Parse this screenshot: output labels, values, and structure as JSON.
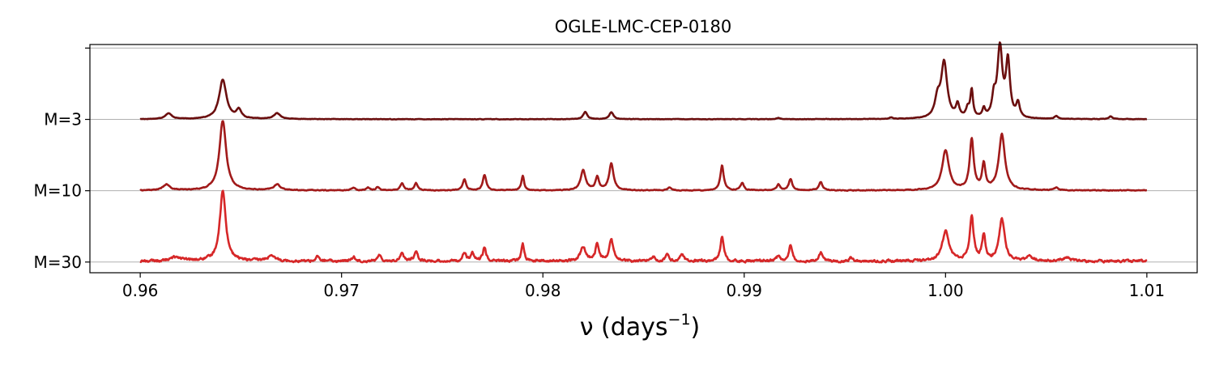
{
  "chart_data": {
    "type": "line",
    "title": "OGLE-LMC-CEP-0180",
    "xlabel": {
      "base": "ν (days",
      "sup": "−1",
      "close": ")"
    },
    "xlim": [
      0.9575,
      1.0125
    ],
    "x_ticks": [
      {
        "value": 0.96,
        "label": "0.96"
      },
      {
        "value": 0.97,
        "label": "0.97"
      },
      {
        "value": 0.98,
        "label": "0.98"
      },
      {
        "value": 0.99,
        "label": "0.99"
      },
      {
        "value": 1.0,
        "label": "1.00"
      },
      {
        "value": 1.01,
        "label": "1.01"
      }
    ],
    "y_ticks": [
      {
        "value": 0,
        "label": "M=30"
      },
      {
        "value": 1,
        "label": "M=10"
      },
      {
        "value": 2,
        "label": "M=3"
      },
      {
        "value": 3,
        "label": ""
      }
    ],
    "ylim": [
      -0.15,
      3.05
    ],
    "grid": "horizontal",
    "x_range": [
      0.96,
      1.01
    ],
    "series": [
      {
        "color": "#6b0f0f",
        "baseline": 2,
        "noise": 0.006,
        "peaks": [
          [
            0.9614,
            0.08,
            0.0002
          ],
          [
            0.9641,
            0.55,
            0.00022
          ],
          [
            0.9649,
            0.12,
            0.00015
          ],
          [
            0.9668,
            0.08,
            0.0002
          ],
          [
            0.9821,
            0.1,
            0.00012
          ],
          [
            0.9834,
            0.1,
            0.00012
          ],
          [
            0.9917,
            0.02,
            0.0001
          ],
          [
            0.9973,
            0.02,
            0.0001
          ],
          [
            0.9996,
            0.25,
            0.00015
          ],
          [
            0.99993,
            0.78,
            0.00018
          ],
          [
            1.0006,
            0.18,
            0.0001
          ],
          [
            1.0011,
            0.12,
            0.0001
          ],
          [
            1.0013,
            0.38,
            8e-05
          ],
          [
            1.0019,
            0.12,
            8e-05
          ],
          [
            1.0024,
            0.25,
            0.0001
          ],
          [
            1.0027,
            0.98,
            0.00015
          ],
          [
            1.0031,
            0.78,
            0.00012
          ],
          [
            1.0036,
            0.2,
            0.0001
          ],
          [
            1.0055,
            0.04,
            0.0001
          ],
          [
            1.0082,
            0.04,
            0.0001
          ]
        ]
      },
      {
        "color": "#a11a1a",
        "baseline": 1,
        "noise": 0.01,
        "peaks": [
          [
            0.9613,
            0.08,
            0.0002
          ],
          [
            0.9641,
            0.98,
            0.0002
          ],
          [
            0.9668,
            0.08,
            0.0002
          ],
          [
            0.9706,
            0.04,
            0.0001
          ],
          [
            0.9713,
            0.04,
            0.0001
          ],
          [
            0.9718,
            0.05,
            0.0001
          ],
          [
            0.973,
            0.1,
            0.0001
          ],
          [
            0.9737,
            0.1,
            0.0001
          ],
          [
            0.9761,
            0.15,
            0.0001
          ],
          [
            0.9771,
            0.22,
            0.0001
          ],
          [
            0.979,
            0.2,
            8e-05
          ],
          [
            0.982,
            0.28,
            0.00015
          ],
          [
            0.9827,
            0.18,
            0.0001
          ],
          [
            0.9834,
            0.38,
            0.00013
          ],
          [
            0.9863,
            0.04,
            0.0001
          ],
          [
            0.9889,
            0.35,
            0.0001
          ],
          [
            0.9899,
            0.1,
            0.0001
          ],
          [
            0.9917,
            0.08,
            0.0001
          ],
          [
            0.9923,
            0.16,
            0.0001
          ],
          [
            0.9938,
            0.12,
            0.0001
          ],
          [
            1.0,
            0.56,
            0.0002
          ],
          [
            1.0013,
            0.7,
            0.00012
          ],
          [
            1.0019,
            0.35,
            0.0001
          ],
          [
            1.0028,
            0.78,
            0.00018
          ],
          [
            1.0055,
            0.04,
            0.0001
          ]
        ]
      },
      {
        "color": "#d62728",
        "baseline": 0,
        "noise": 0.03,
        "peaks": [
          [
            0.9641,
            0.98,
            0.00018
          ],
          [
            0.9618,
            0.06,
            0.0003
          ],
          [
            0.9665,
            0.06,
            0.0003
          ],
          [
            0.9688,
            0.06,
            0.0001
          ],
          [
            0.9706,
            0.06,
            0.0001
          ],
          [
            0.9719,
            0.08,
            0.0001
          ],
          [
            0.973,
            0.12,
            0.0001
          ],
          [
            0.9737,
            0.15,
            0.0001
          ],
          [
            0.9761,
            0.12,
            0.0001
          ],
          [
            0.9765,
            0.1,
            0.0001
          ],
          [
            0.9771,
            0.18,
            0.0001
          ],
          [
            0.979,
            0.25,
            8e-05
          ],
          [
            0.982,
            0.2,
            0.00015
          ],
          [
            0.9827,
            0.25,
            0.0001
          ],
          [
            0.9834,
            0.3,
            0.00012
          ],
          [
            0.9855,
            0.06,
            0.0001
          ],
          [
            0.9862,
            0.1,
            0.0001
          ],
          [
            0.9869,
            0.1,
            0.0001
          ],
          [
            0.9889,
            0.35,
            0.0001
          ],
          [
            0.9917,
            0.08,
            0.0001
          ],
          [
            0.9923,
            0.22,
            0.0001
          ],
          [
            0.9938,
            0.12,
            0.0001
          ],
          [
            0.9953,
            0.05,
            0.0001
          ],
          [
            1.0,
            0.42,
            0.0002
          ],
          [
            1.0013,
            0.6,
            0.00012
          ],
          [
            1.0019,
            0.35,
            0.0001
          ],
          [
            1.0028,
            0.6,
            0.00016
          ],
          [
            1.0042,
            0.06,
            0.0002
          ],
          [
            1.006,
            0.05,
            0.0002
          ]
        ]
      }
    ]
  }
}
